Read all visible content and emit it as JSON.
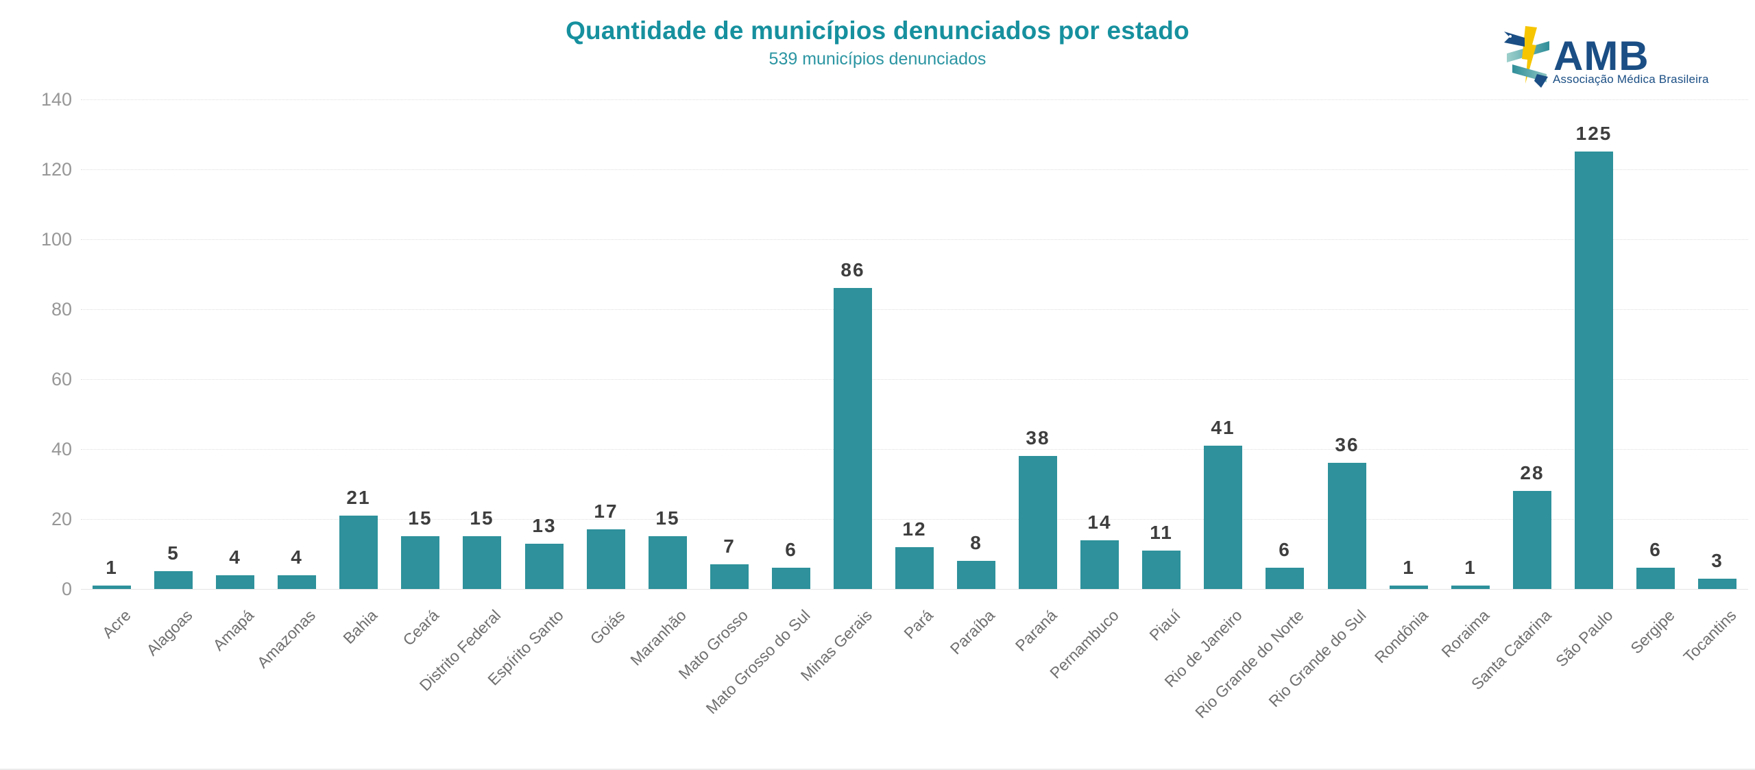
{
  "header": {
    "title": "Quantidade de municípios denunciados por estado",
    "subtitle": "539 municípios denunciados"
  },
  "logo": {
    "text": "AMB",
    "tagline": "Associação Médica Brasileira",
    "icon": "caduceus-lightning-ribbon",
    "navy": "#1a4e84",
    "yellow": "#f6c500",
    "teal": "#2f8e99",
    "teal_light": "#9ed0cc"
  },
  "colors": {
    "bar": "#2e919b",
    "title": "#16909e",
    "subtitle": "#2b95a2",
    "axis_tick_label": "#979797",
    "category_label": "#6f6f6f",
    "value_label": "#3e3e3e",
    "gridline": "#dedede",
    "background": "#ffffff"
  },
  "chart_data": {
    "type": "bar",
    "title": "Quantidade de municípios denunciados por estado",
    "subtitle": "539 municípios denunciados",
    "total": 539,
    "categories": [
      "Acre",
      "Alagoas",
      "Amapá",
      "Amazonas",
      "Bahia",
      "Ceará",
      "Distrito Federal",
      "Espírito Santo",
      "Goiás",
      "Maranhão",
      "Mato Grosso",
      "Mato Grosso do Sul",
      "Minas Gerais",
      "Pará",
      "Paraíba",
      "Paraná",
      "Pernambuco",
      "Piauí",
      "Rio de Janeiro",
      "Rio Grande do Norte",
      "Rio Grande do Sul",
      "Rondônia",
      "Roraima",
      "Santa Catarina",
      "São Paulo",
      "Sergipe",
      "Tocantins"
    ],
    "values": [
      1,
      5,
      4,
      4,
      21,
      15,
      15,
      13,
      17,
      15,
      7,
      6,
      86,
      12,
      8,
      38,
      14,
      11,
      41,
      6,
      36,
      1,
      1,
      28,
      125,
      6,
      3
    ],
    "xlabel": "",
    "ylabel": "",
    "ylim": [
      0,
      140
    ],
    "yticks": [
      0,
      20,
      40,
      60,
      80,
      100,
      120,
      140
    ],
    "grid": true,
    "legend": false,
    "bar_color": "#2e919b",
    "value_labels": true,
    "category_label_rotation_deg": -45
  }
}
